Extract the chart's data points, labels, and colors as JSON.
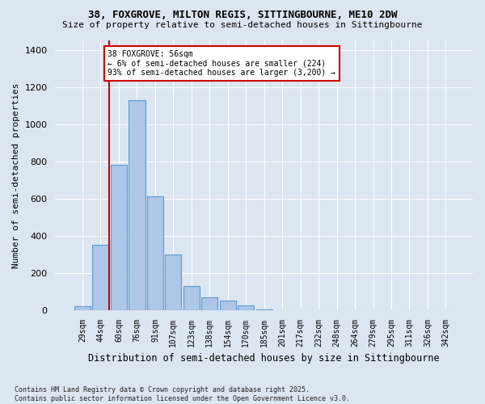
{
  "title1": "38, FOXGROVE, MILTON REGIS, SITTINGBOURNE, ME10 2DW",
  "title2": "Size of property relative to semi-detached houses in Sittingbourne",
  "xlabel": "Distribution of semi-detached houses by size in Sittingbourne",
  "ylabel": "Number of semi-detached properties",
  "footer": "Contains HM Land Registry data © Crown copyright and database right 2025.\nContains public sector information licensed under the Open Government Licence v3.0.",
  "categories": [
    "29sqm",
    "44sqm",
    "60sqm",
    "76sqm",
    "91sqm",
    "107sqm",
    "123sqm",
    "138sqm",
    "154sqm",
    "170sqm",
    "185sqm",
    "201sqm",
    "217sqm",
    "232sqm",
    "248sqm",
    "264sqm",
    "279sqm",
    "295sqm",
    "311sqm",
    "326sqm",
    "342sqm"
  ],
  "values": [
    20,
    350,
    780,
    1130,
    610,
    300,
    130,
    70,
    50,
    25,
    5,
    0,
    0,
    0,
    0,
    0,
    0,
    0,
    0,
    0,
    0
  ],
  "bar_color": "#aec6e8",
  "bar_edge_color": "#5b9bd5",
  "background_color": "#dce6f1",
  "grid_color": "#ffffff",
  "annotation_text": "38 FOXGROVE: 56sqm\n← 6% of semi-detached houses are smaller (224)\n93% of semi-detached houses are larger (3,200) →",
  "annotation_box_color": "#ffffff",
  "annotation_edge_color": "#cc0000",
  "red_line_x": 1.45,
  "ylim": [
    0,
    1450
  ],
  "yticks": [
    0,
    200,
    400,
    600,
    800,
    1000,
    1200,
    1400
  ]
}
